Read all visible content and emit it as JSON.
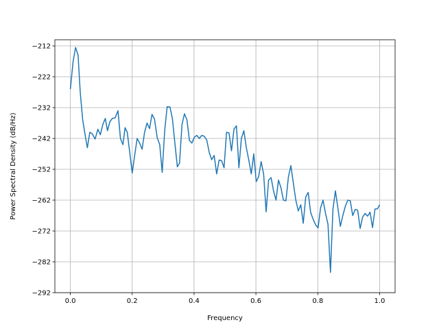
{
  "chart_data": {
    "type": "line",
    "title": "",
    "xlabel": "Frequency",
    "ylabel": "Power Spectral Density (dB/Hz)",
    "xlim": [
      -0.05,
      1.05
    ],
    "ylim": [
      -292,
      -210
    ],
    "xticks": [
      0.0,
      0.2,
      0.4,
      0.6,
      0.8,
      1.0
    ],
    "xtick_labels": [
      "0.0",
      "0.2",
      "0.4",
      "0.6",
      "0.8",
      "1.0"
    ],
    "yticks": [
      -212,
      -222,
      -232,
      -242,
      -252,
      -262,
      -272,
      -282,
      -292
    ],
    "ytick_labels": [
      "−212",
      "−222",
      "−232",
      "−242",
      "−252",
      "−262",
      "−272",
      "−282",
      "−292"
    ],
    "grid": true,
    "line_color": "#1f77b4",
    "series": [
      {
        "x": [
          0.0,
          0.009,
          0.017,
          0.025,
          0.032,
          0.04,
          0.048,
          0.055,
          0.063,
          0.071,
          0.08,
          0.089,
          0.097,
          0.105,
          0.113,
          0.12,
          0.128,
          0.136,
          0.145,
          0.154,
          0.162,
          0.17,
          0.177,
          0.184,
          0.192,
          0.2,
          0.208,
          0.216,
          0.224,
          0.232,
          0.24,
          0.248,
          0.256,
          0.264,
          0.272,
          0.281,
          0.289,
          0.297,
          0.305,
          0.313,
          0.322,
          0.33,
          0.338,
          0.346,
          0.353,
          0.361,
          0.369,
          0.377,
          0.385,
          0.393,
          0.401,
          0.409,
          0.417,
          0.425,
          0.433,
          0.441,
          0.449,
          0.457,
          0.465,
          0.473,
          0.481,
          0.489,
          0.497,
          0.505,
          0.513,
          0.521,
          0.529,
          0.537,
          0.545,
          0.553,
          0.561,
          0.569,
          0.577,
          0.585,
          0.593,
          0.601,
          0.609,
          0.617,
          0.625,
          0.633,
          0.641,
          0.649,
          0.657,
          0.665,
          0.673,
          0.681,
          0.689,
          0.697,
          0.705,
          0.713,
          0.721,
          0.729,
          0.737,
          0.745,
          0.753,
          0.761,
          0.769,
          0.777,
          0.785,
          0.793,
          0.801,
          0.809,
          0.817,
          0.825,
          0.833,
          0.841,
          0.849,
          0.857,
          0.865,
          0.873,
          0.881,
          0.889,
          0.897,
          0.905,
          0.913,
          0.921,
          0.929,
          0.937,
          0.945,
          0.953,
          0.961,
          0.969,
          0.977,
          0.985,
          0.993,
          1.0
        ],
        "y": [
          -226,
          -217,
          -212.5,
          -215,
          -227,
          -236,
          -241,
          -245,
          -240,
          -240.5,
          -242.2,
          -239,
          -240.8,
          -237.5,
          -235.5,
          -239.5,
          -236.5,
          -235.5,
          -235.3,
          -233,
          -242,
          -244,
          -238.5,
          -240,
          -246.5,
          -253.2,
          -247.5,
          -242,
          -243.5,
          -245.5,
          -240,
          -237,
          -238.8,
          -234.2,
          -235.7,
          -241.8,
          -244,
          -253,
          -239.5,
          -231.7,
          -231.8,
          -235.6,
          -243.5,
          -251.2,
          -250,
          -237.5,
          -234,
          -236,
          -242.6,
          -243.5,
          -241.6,
          -241,
          -242,
          -241,
          -241.3,
          -242.5,
          -246.5,
          -248.9,
          -247.5,
          -253.5,
          -249,
          -249.2,
          -251.5,
          -240,
          -240.2,
          -246,
          -239,
          -237.9,
          -251.5,
          -242,
          -239.5,
          -245,
          -249,
          -253.5,
          -247,
          -256,
          -254.3,
          -249.5,
          -253.6,
          -265.8,
          -255.5,
          -254.7,
          -259,
          -262,
          -255.5,
          -258,
          -262,
          -262.2,
          -254.5,
          -250.8,
          -256.5,
          -262,
          -265.5,
          -263.5,
          -269.5,
          -261,
          -259.5,
          -266,
          -268.2,
          -270,
          -271,
          -264.5,
          -262,
          -266.3,
          -269.8,
          -285.4,
          -265,
          -259,
          -264.5,
          -270.5,
          -267,
          -264,
          -262,
          -262.2,
          -267,
          -265,
          -265.3,
          -271.2,
          -267.5,
          -266.3,
          -267.2,
          -265.9,
          -270.9,
          -264.9,
          -264.8,
          -263.5
        ]
      }
    ]
  }
}
